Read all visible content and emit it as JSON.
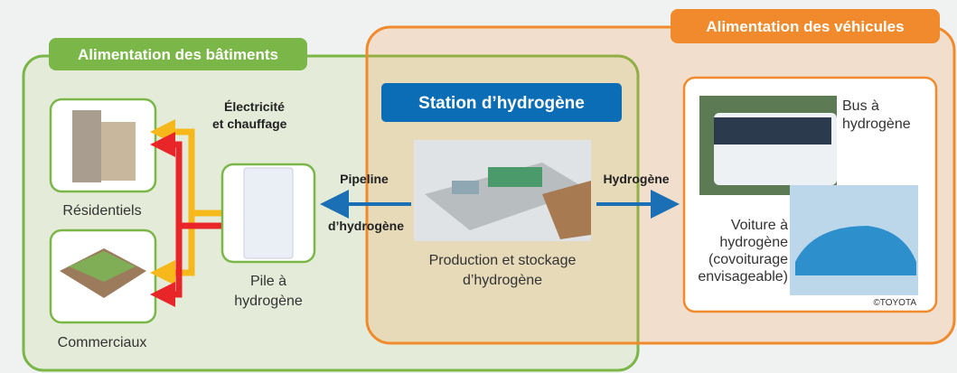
{
  "groups": {
    "buildings": {
      "title": "Alimentation des bâtiments"
    },
    "vehicles": {
      "title": "Alimentation des véhicules"
    }
  },
  "station": {
    "title": "Station d’hydrogène",
    "caption": [
      "Production et stockage",
      "d’hydrogène"
    ]
  },
  "buildings": {
    "residential": "Résidentiels",
    "commercial": "Commerciaux",
    "energy_label": [
      "Électricité",
      "et chauffage"
    ]
  },
  "fuel_cell": {
    "label": [
      "Pile à",
      "hydrogène"
    ]
  },
  "pipeline": {
    "label": [
      "Pipeline",
      "d’hydrogène"
    ]
  },
  "hydrogen_arrow": {
    "label": "Hydrogène"
  },
  "vehicles": {
    "bus": [
      "Bus à",
      "hydrogène"
    ],
    "car": [
      "Voiture à",
      "hydrogène",
      "(covoiturage",
      "envisageable)"
    ],
    "credit": "©TOYOTA"
  }
}
